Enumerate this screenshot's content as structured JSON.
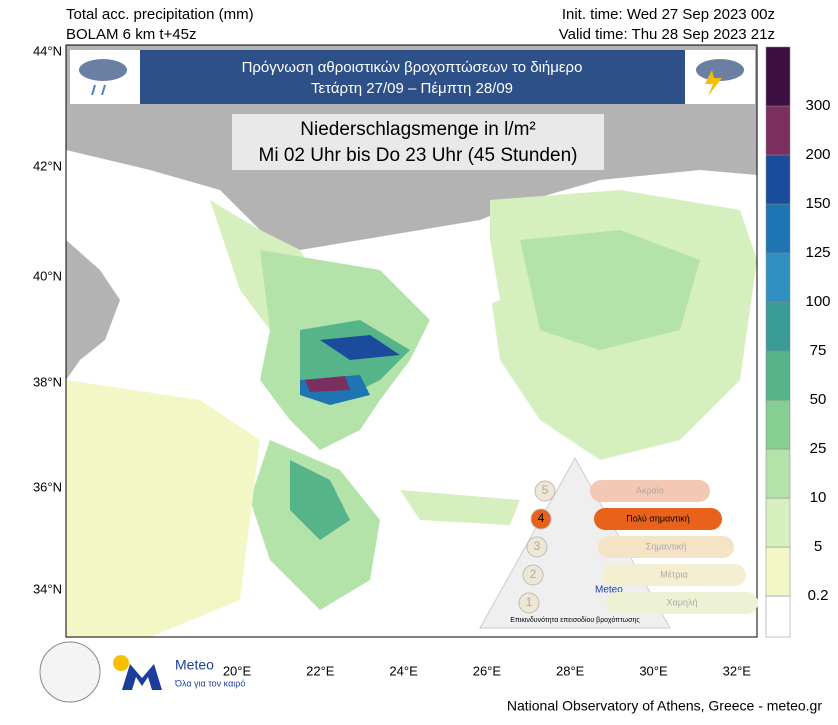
{
  "header": {
    "product": "Total acc. precipitation (mm)",
    "model": "BOLAM 6 km t+45z",
    "init_time": "Init. time: Wed 27 Sep 2023 00z",
    "valid_time": "Valid time: Thu 28 Sep 2023 21z"
  },
  "banner": {
    "line1": "Πρόγνωση αθροιστικών βροχοπτώσεων το διήμερο",
    "line2": "Τετάρτη 27/09 – Πέμπτη 28/09"
  },
  "note": {
    "line1": "Niederschlagsmenge in l/m²",
    "line2": "Mi 02 Uhr bis Do 23 Uhr (45 Stunden)"
  },
  "lat_labels": [
    "44°N",
    "42°N",
    "40°N",
    "38°N",
    "36°N",
    "34°N"
  ],
  "lon_labels": [
    "20°E",
    "22°E",
    "24°E",
    "26°E",
    "28°E",
    "30°E",
    "32°E"
  ],
  "colorbar": {
    "labels": [
      0.2,
      5,
      10,
      25,
      50,
      75,
      100,
      125,
      150,
      200,
      300
    ],
    "colors": [
      "#ffffff",
      "#f3f7c6",
      "#d6efbf",
      "#b3e3a9",
      "#86cf93",
      "#55b48a",
      "#3b9c95",
      "#3190c2",
      "#1f74b3",
      "#1b4c9c",
      "#7b2f5e",
      "#3b1040"
    ]
  },
  "warning": {
    "levels": [
      {
        "num": "5",
        "label": "Ακραία"
      },
      {
        "num": "4",
        "label": "Πολύ σημαντική"
      },
      {
        "num": "3",
        "label": "Σημαντική"
      },
      {
        "num": "2",
        "label": "Μέτρια"
      },
      {
        "num": "1",
        "label": "Χαμηλή"
      }
    ],
    "brand": "Meteo",
    "caption": "Επικινδυνότητα επεισοδίου βροχόπτωσης"
  },
  "logo": {
    "brand": "Meteo",
    "slogan": "Όλα για τον καιρό"
  },
  "footer": "National Observatory of Athens, Greece - meteo.gr"
}
